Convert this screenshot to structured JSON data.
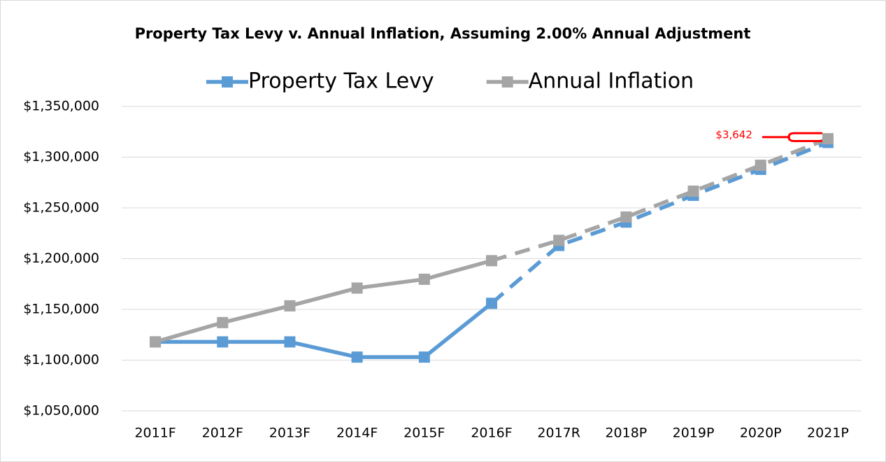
{
  "chart_data": {
    "type": "line",
    "title": "Property Tax Levy v. Annual Inflation, Assuming 2.00% Annual Adjustment",
    "categories": [
      "2011F",
      "2012F",
      "2013F",
      "2014F",
      "2015F",
      "2016F",
      "2017R",
      "2018P",
      "2019P",
      "2020P",
      "2021P"
    ],
    "series": [
      {
        "name": "Property Tax Levy",
        "color": "#5b9bd5",
        "dash_start": 5,
        "values": [
          1118000,
          1118000,
          1118000,
          1103000,
          1103000,
          1156000,
          1213000,
          1236000,
          1262400,
          1288000,
          1314500
        ]
      },
      {
        "name": "Annual Inflation",
        "color": "#a5a5a5",
        "dash_start": 5,
        "values": [
          1118000,
          1137000,
          1153500,
          1171000,
          1179700,
          1198000,
          1218000,
          1241000,
          1266500,
          1292000,
          1318142
        ]
      }
    ],
    "ylim": [
      1050000,
      1350000
    ],
    "yticks": [
      {
        "value": 1050000,
        "label": "$1,050,000"
      },
      {
        "value": 1100000,
        "label": "$1,100,000"
      },
      {
        "value": 1150000,
        "label": "$1,150,000"
      },
      {
        "value": 1200000,
        "label": "$1,200,000"
      },
      {
        "value": 1250000,
        "label": "$1,250,000"
      },
      {
        "value": 1300000,
        "label": "$1,300,000"
      },
      {
        "value": 1350000,
        "label": "$1,350,000"
      }
    ],
    "grid": true,
    "legend": "top",
    "annotation": {
      "text": "$3,642",
      "color": "#ff0000"
    }
  }
}
